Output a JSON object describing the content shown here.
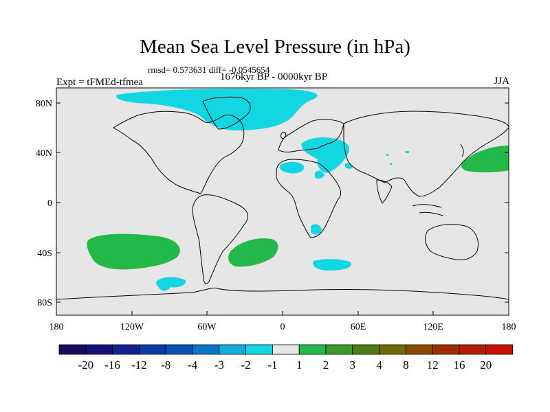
{
  "title": "Mean Sea Level Pressure (in hPa)",
  "stats": "rmsd= 0.573631 diff= -0.0545654",
  "experiment": "Expt = tFMEd-tfmea",
  "period": "1676kyr BP - 0000kyr BP",
  "season": "JJA",
  "lat_labels": [
    "80N",
    "40N",
    "0",
    "40S",
    "80S"
  ],
  "lon_labels": [
    "180",
    "120W",
    "60W",
    "0",
    "60E",
    "120E",
    "180"
  ],
  "colorbar": {
    "labels": [
      "-20",
      "-16",
      "-12",
      "-8",
      "-4",
      "-3",
      "-2",
      "-1",
      "1",
      "2",
      "3",
      "4",
      "8",
      "12",
      "16",
      "20"
    ],
    "colors": [
      "#1a0a5e",
      "#15107a",
      "#0f2290",
      "#0b3aa3",
      "#0a52b5",
      "#0a78c8",
      "#10aedc",
      "#12d7e3",
      "#e6e6e6",
      "#22b84a",
      "#3b9a2a",
      "#4f7d12",
      "#6e6a08",
      "#8a4a06",
      "#a02d05",
      "#b51a04",
      "#c80f05"
    ]
  },
  "colors": {
    "background": "#e6e6e6",
    "negative_anomaly": "#12d7e3",
    "positive_anomaly": "#22b84a"
  }
}
